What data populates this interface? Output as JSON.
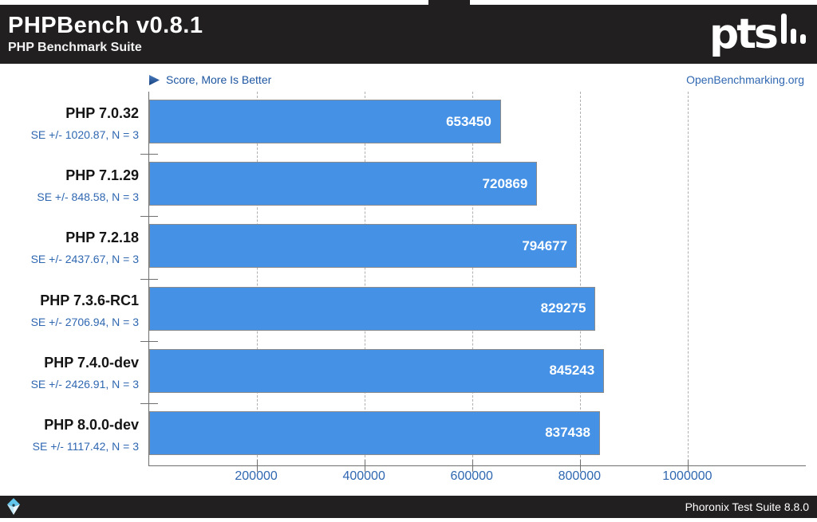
{
  "header": {
    "title": "PHPBench v0.8.1",
    "subtitle": "PHP Benchmark Suite",
    "logo_text": "pts"
  },
  "chart_meta": {
    "hint": "Score, More Is Better",
    "watermark": "OpenBenchmarking.org"
  },
  "chart_data": {
    "type": "bar",
    "orientation": "horizontal",
    "title": "PHPBench v0.8.1",
    "subtitle": "PHP Benchmark Suite",
    "value_label": "Score",
    "better_direction": "More Is Better",
    "categories": [
      "PHP 7.0.32",
      "PHP 7.1.29",
      "PHP 7.2.18",
      "PHP 7.3.6-RC1",
      "PHP 7.4.0-dev",
      "PHP 8.0.0-dev"
    ],
    "values": [
      653450,
      720869,
      794677,
      829275,
      845243,
      837438
    ],
    "standard_errors": [
      1020.87,
      848.58,
      2437.67,
      2706.94,
      2426.91,
      1117.42
    ],
    "sample_count": 3,
    "se_labels": [
      "SE +/- 1020.87, N = 3",
      "SE +/- 848.58, N = 3",
      "SE +/- 2437.67, N = 3",
      "SE +/- 2706.94, N = 3",
      "SE +/- 2426.91, N = 3",
      "SE +/- 1117.42, N = 3"
    ],
    "xticks": [
      200000,
      400000,
      600000,
      800000,
      1000000
    ],
    "xtick_labels": [
      "200000",
      "400000",
      "600000",
      "800000",
      "1000000"
    ],
    "xlim": [
      0,
      1220000
    ],
    "grid": "vertical-dashed",
    "legend_position": "none"
  },
  "footer": {
    "text": "Phoronix Test Suite 8.8.0",
    "logo": "openbenchmarking-gem-icon"
  },
  "colors": {
    "bar_fill": "#4591e5",
    "bar_border": "#8c8c8c",
    "accent_blue_text": "#2f67b1",
    "hint_blue": "#1d55a0",
    "header_bg": "#211f20",
    "footer_bg": "#211f20",
    "axis": "#6f6f6f",
    "grid": "#b0b0b0",
    "value_text": "#ffffff",
    "label_text": "#151515"
  }
}
